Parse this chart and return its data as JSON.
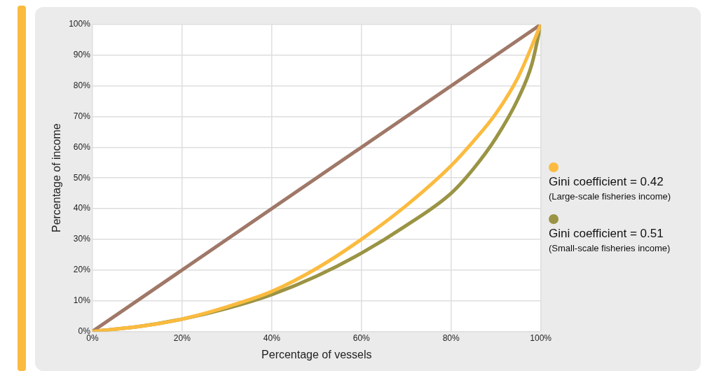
{
  "chart_data": {
    "type": "line",
    "xlabel": "Percentage of vessels",
    "ylabel": "Percentage of income",
    "xlim": [
      0,
      100
    ],
    "ylim": [
      0,
      100
    ],
    "xticks": [
      {
        "value": 0,
        "label": "0%"
      },
      {
        "value": 20,
        "label": "20%"
      },
      {
        "value": 40,
        "label": "40%"
      },
      {
        "value": 60,
        "label": "60%"
      },
      {
        "value": 80,
        "label": "80%"
      },
      {
        "value": 100,
        "label": "100%"
      }
    ],
    "yticks": [
      {
        "value": 0,
        "label": "0%"
      },
      {
        "value": 10,
        "label": "10%"
      },
      {
        "value": 20,
        "label": "20%"
      },
      {
        "value": 30,
        "label": "30%"
      },
      {
        "value": 40,
        "label": "40%"
      },
      {
        "value": 50,
        "label": "50%"
      },
      {
        "value": 60,
        "label": "60%"
      },
      {
        "value": 70,
        "label": "70%"
      },
      {
        "value": 80,
        "label": "80%"
      },
      {
        "value": 90,
        "label": "90%"
      },
      {
        "value": 100,
        "label": "100%"
      }
    ],
    "grid": true,
    "legend": "right",
    "marker": "none",
    "series": [
      {
        "color": "#a07868",
        "x": [
          0,
          100
        ],
        "values": [
          0,
          100
        ]
      },
      {
        "name": "Gini coefficient = 0.51\n(Small-scale fisheries income)",
        "color": "#9a9444",
        "x": [
          0,
          10,
          20,
          30,
          40,
          50,
          60,
          70,
          80,
          85,
          90,
          95,
          98,
          100
        ],
        "values": [
          0,
          1.5,
          4,
          7.5,
          12,
          18,
          25.5,
          34.5,
          45,
          53,
          63,
          76,
          87,
          100
        ]
      },
      {
        "name": "Gini coefficient = 0.42\n(Large-scale fisheries income)",
        "color": "#fbbb3f",
        "x": [
          0,
          10,
          20,
          30,
          40,
          50,
          60,
          70,
          80,
          85,
          90,
          95,
          100
        ],
        "values": [
          0,
          1.5,
          4,
          8,
          13,
          20.5,
          30,
          41,
          54,
          62,
          71,
          83,
          100
        ]
      }
    ]
  }
}
